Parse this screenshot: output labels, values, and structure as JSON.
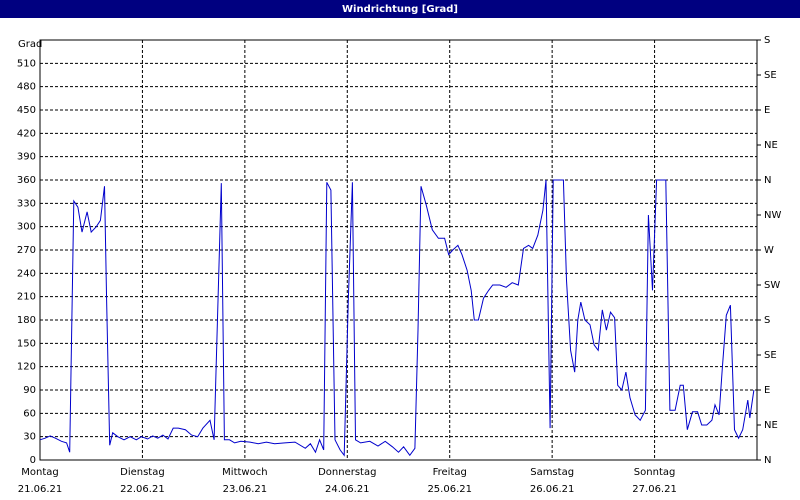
{
  "chart_data": {
    "type": "line",
    "title": "Windrichtung [Grad]",
    "y_label": "Grad",
    "xlim": [
      0,
      7
    ],
    "xticks": [
      {
        "value": 0,
        "label": [
          "Montag",
          "21.06.21"
        ]
      },
      {
        "value": 1,
        "label": [
          "Dienstag",
          "22.06.21"
        ]
      },
      {
        "value": 2,
        "label": [
          "Mittwoch",
          "23.06.21"
        ]
      },
      {
        "value": 3,
        "label": [
          "Donnerstag",
          "24.06.21"
        ]
      },
      {
        "value": 4,
        "label": [
          "Freitag",
          "25.06.21"
        ]
      },
      {
        "value": 5,
        "label": [
          "Samstag",
          "26.06.21"
        ]
      },
      {
        "value": 6,
        "label": [
          "Sonntag",
          "27.06.21"
        ]
      }
    ],
    "ylim": [
      0,
      540
    ],
    "yticks": [
      0,
      30,
      60,
      90,
      120,
      150,
      180,
      210,
      240,
      270,
      300,
      330,
      360,
      390,
      420,
      450,
      480,
      510
    ],
    "y2lim": [
      0,
      540
    ],
    "y2ticks": [
      {
        "value": 0,
        "label": "N"
      },
      {
        "value": 45,
        "label": "NE"
      },
      {
        "value": 90,
        "label": "E"
      },
      {
        "value": 135,
        "label": "SE"
      },
      {
        "value": 180,
        "label": "S"
      },
      {
        "value": 225,
        "label": "SW"
      },
      {
        "value": 270,
        "label": "W"
      },
      {
        "value": 315,
        "label": "NW"
      },
      {
        "value": 360,
        "label": "N"
      },
      {
        "value": 405,
        "label": "NE"
      },
      {
        "value": 450,
        "label": "E"
      },
      {
        "value": 495,
        "label": "SE"
      },
      {
        "value": 540,
        "label": "S"
      }
    ],
    "grid": true,
    "series": [
      {
        "color": "#0000cc",
        "x": [
          0,
          0.05,
          0.1,
          0.15,
          0.21,
          0.26,
          0.29,
          0.33,
          0.37,
          0.41,
          0.46,
          0.5,
          0.55,
          0.59,
          0.63,
          0.65,
          0.68,
          0.71,
          0.76,
          0.82,
          0.88,
          0.94,
          0.99,
          1.05,
          1.1,
          1.15,
          1.2,
          1.25,
          1.3,
          1.35,
          1.42,
          1.48,
          1.54,
          1.59,
          1.66,
          1.7,
          1.77,
          1.8,
          1.85,
          1.9,
          1.96,
          2.05,
          2.13,
          2.21,
          2.29,
          2.39,
          2.49,
          2.59,
          2.64,
          2.69,
          2.73,
          2.77,
          2.8,
          2.84,
          2.88,
          2.93,
          2.97,
          3.01,
          3.05,
          3.08,
          3.13,
          3.22,
          3.3,
          3.37,
          3.44,
          3.5,
          3.55,
          3.61,
          3.66,
          3.69,
          3.72,
          3.77,
          3.83,
          3.89,
          3.95,
          3.99,
          4.03,
          4.08,
          4.12,
          4.17,
          4.21,
          4.24,
          4.28,
          4.33,
          4.38,
          4.42,
          4.49,
          4.55,
          4.61,
          4.67,
          4.72,
          4.77,
          4.81,
          4.86,
          4.91,
          4.94,
          4.98,
          5.01,
          5.06,
          5.11,
          5.14,
          5.18,
          5.22,
          5.25,
          5.28,
          5.32,
          5.37,
          5.41,
          5.45,
          5.49,
          5.53,
          5.57,
          5.61,
          5.64,
          5.68,
          5.72,
          5.76,
          5.81,
          5.86,
          5.91,
          5.94,
          5.98,
          6.02,
          6.07,
          6.11,
          6.15,
          6.2,
          6.25,
          6.28,
          6.32,
          6.37,
          6.42,
          6.46,
          6.51,
          6.56,
          6.59,
          6.63,
          6.66,
          6.7,
          6.74,
          6.78,
          6.82,
          6.86,
          6.91,
          6.93,
          6.97
        ],
        "values": [
          26,
          28,
          31,
          28,
          24,
          22,
          10,
          333,
          325,
          293,
          319,
          293,
          300,
          308,
          352,
          206,
          19,
          35,
          30,
          26,
          30,
          26,
          30,
          27,
          31,
          28,
          32,
          27,
          41,
          41,
          39,
          32,
          30,
          41,
          51,
          26,
          356,
          26,
          26,
          22,
          24,
          23,
          21,
          23,
          21,
          22,
          23,
          15,
          21,
          10,
          26,
          13,
          357,
          347,
          26,
          13,
          6,
          206,
          357,
          26,
          22,
          24,
          18,
          24,
          17,
          10,
          17,
          6,
          15,
          167,
          352,
          328,
          296,
          285,
          285,
          264,
          270,
          276,
          264,
          244,
          218,
          180,
          180,
          208,
          218,
          225,
          225,
          222,
          228,
          225,
          272,
          276,
          272,
          289,
          321,
          360,
          41,
          360,
          360,
          360,
          231,
          141,
          113,
          180,
          203,
          180,
          174,
          148,
          141,
          193,
          167,
          190,
          183,
          96,
          90,
          113,
          80,
          58,
          51,
          64,
          315,
          218,
          360,
          360,
          360,
          64,
          64,
          96,
          96,
          39,
          62,
          62,
          45,
          45,
          51,
          71,
          58,
          116,
          186,
          199,
          39,
          28,
          39,
          77,
          54,
          90
        ]
      }
    ]
  }
}
